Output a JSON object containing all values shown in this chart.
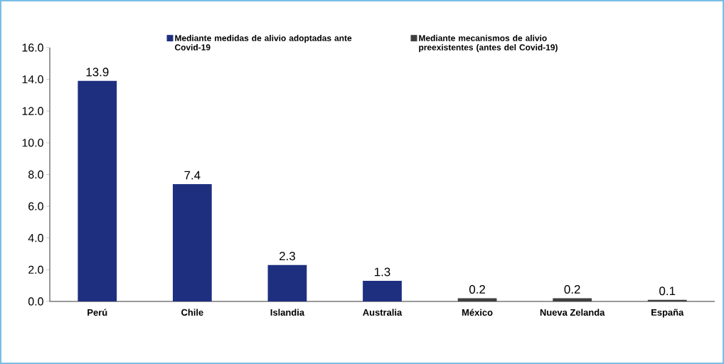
{
  "chart_data": {
    "type": "bar",
    "categories": [
      "Perú",
      "Chile",
      "Islandia",
      "Australia",
      "México",
      "Nueva Zelanda",
      "España"
    ],
    "series": [
      {
        "name": "Mediante medidas de alivio adoptadas ante Covid-19",
        "color": "#1f2f7f",
        "values": [
          13.9,
          7.4,
          2.3,
          1.3,
          null,
          null,
          null
        ]
      },
      {
        "name": "Mediante mecanismos de alivio preexistentes (antes del Covid-19)",
        "color": "#404040",
        "values": [
          null,
          null,
          null,
          null,
          0.2,
          0.2,
          0.1
        ]
      }
    ],
    "ylim": [
      0,
      16
    ],
    "yticks": [
      {
        "value": 0,
        "label": "0.0"
      },
      {
        "value": 2,
        "label": "2.0"
      },
      {
        "value": 4,
        "label": "4.0"
      },
      {
        "value": 6,
        "label": "6.0"
      },
      {
        "value": 8,
        "label": "8.0"
      },
      {
        "value": 10,
        "label": "10.0"
      },
      {
        "value": 12,
        "label": "12.0"
      },
      {
        "value": 14,
        "label": "14.0"
      },
      {
        "value": 16,
        "label": "16.0"
      }
    ],
    "data_labels": true,
    "legend": "top"
  }
}
